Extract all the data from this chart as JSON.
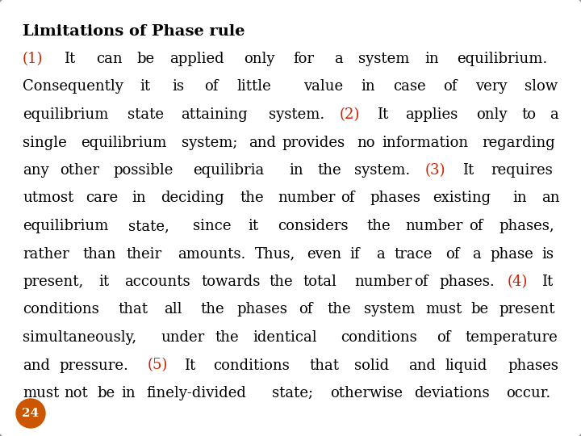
{
  "background_color": "#e8e8e8",
  "slide_bg": "#ffffff",
  "border_color": "#999999",
  "title": "Limitations of Phase rule",
  "title_color": "#000000",
  "red_color": "#cc2200",
  "black_color": "#000000",
  "badge_color": "#cc5500",
  "badge_text": "24",
  "badge_text_color": "#ffffff",
  "font_size": 13.0,
  "title_font_size": 14.0,
  "segments": [
    {
      "text": "(1)",
      "color": "#cc2200"
    },
    {
      "text": " It can be applied only for a system in equilibrium. Consequently it is of little value in case of very slow equilibrium state attaining system. ",
      "color": "#000000"
    },
    {
      "text": "(2)",
      "color": "#cc2200"
    },
    {
      "text": " It applies only to a single equilibrium system; and provides no information regarding any other possible equilibria in the system. ",
      "color": "#000000"
    },
    {
      "text": "(3)",
      "color": "#cc2200"
    },
    {
      "text": " It requires utmost care in deciding the number of phases existing in an equilibrium state, since it considers the number of phases, rather than their amounts. Thus, even if a trace of a phase is present, it accounts towards the total number of phases. ",
      "color": "#000000"
    },
    {
      "text": "(4)",
      "color": "#cc2200"
    },
    {
      "text": " It conditions that all the phases of the system must be present simultaneously, under the identical conditions of temperature and pressure. ",
      "color": "#000000"
    },
    {
      "text": "(5)",
      "color": "#cc2200"
    },
    {
      "text": " It conditions that solid and liquid phases must not be in finely-divided state; otherwise deviations occur.",
      "color": "#000000"
    }
  ]
}
